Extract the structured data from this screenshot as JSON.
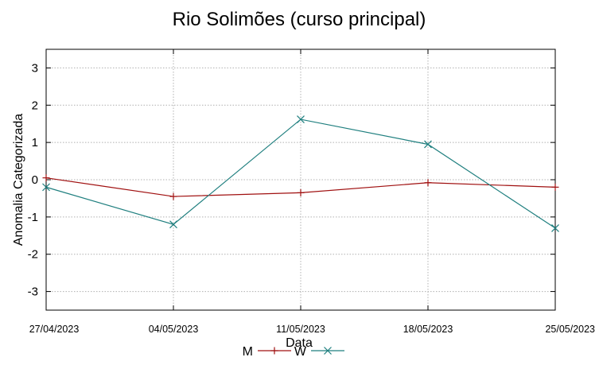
{
  "chart_data": {
    "type": "line",
    "title": "Rio Solimões (curso principal)",
    "xlabel": "Data",
    "ylabel": "Anomalia Categorizada",
    "categories": [
      "27/04/2023",
      "04/05/2023",
      "11/05/2023",
      "18/05/2023",
      "25/05/2023"
    ],
    "ylim": [
      -3.5,
      3.5
    ],
    "yticks": [
      -3,
      -2,
      -1,
      0,
      1,
      2,
      3
    ],
    "grid": true,
    "legend_position": "bottom-center",
    "series": [
      {
        "name": "M",
        "color": "#a01010",
        "marker": "plus",
        "values": [
          0.05,
          -0.45,
          -0.35,
          -0.08,
          -0.2
        ]
      },
      {
        "name": "W",
        "color": "#1f7f7f",
        "marker": "x",
        "values": [
          -0.2,
          -1.2,
          1.62,
          0.95,
          -1.3
        ]
      }
    ]
  }
}
